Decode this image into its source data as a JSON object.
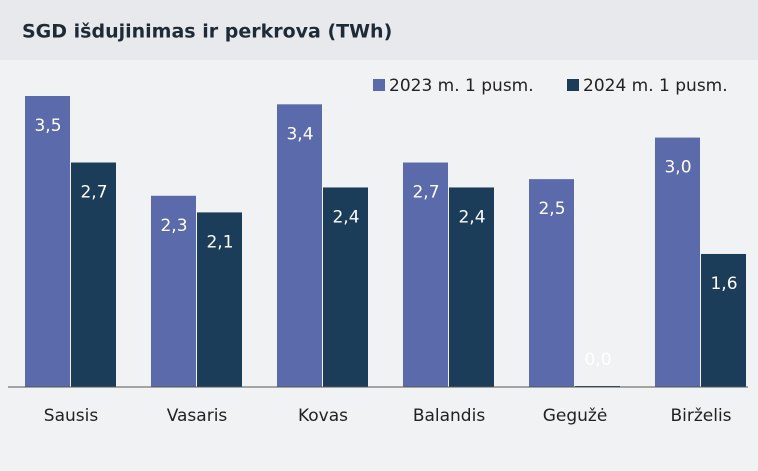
{
  "chart_data": {
    "type": "bar",
    "title": "SGD išdujinimas ir perkrova (TWh)",
    "categories": [
      "Sausis",
      "Vasaris",
      "Kovas",
      "Balandis",
      "Gegužė",
      "Birželis"
    ],
    "series": [
      {
        "name": "2023 m. 1 pusm.",
        "color": "#5b6aab",
        "values": [
          3.5,
          2.3,
          3.4,
          2.7,
          2.5,
          3.0
        ],
        "value_labels": [
          "3,5",
          "2,3",
          "3,4",
          "2,7",
          "2,5",
          "3,0"
        ]
      },
      {
        "name": "2024 m. 1 pusm.",
        "color": "#1c3d5a",
        "values": [
          2.7,
          2.1,
          2.4,
          2.4,
          0.0,
          1.6
        ],
        "value_labels": [
          "2,7",
          "2,1",
          "2,4",
          "2,4",
          "0,0",
          "1,6"
        ]
      }
    ],
    "legend": "top-right"
  }
}
